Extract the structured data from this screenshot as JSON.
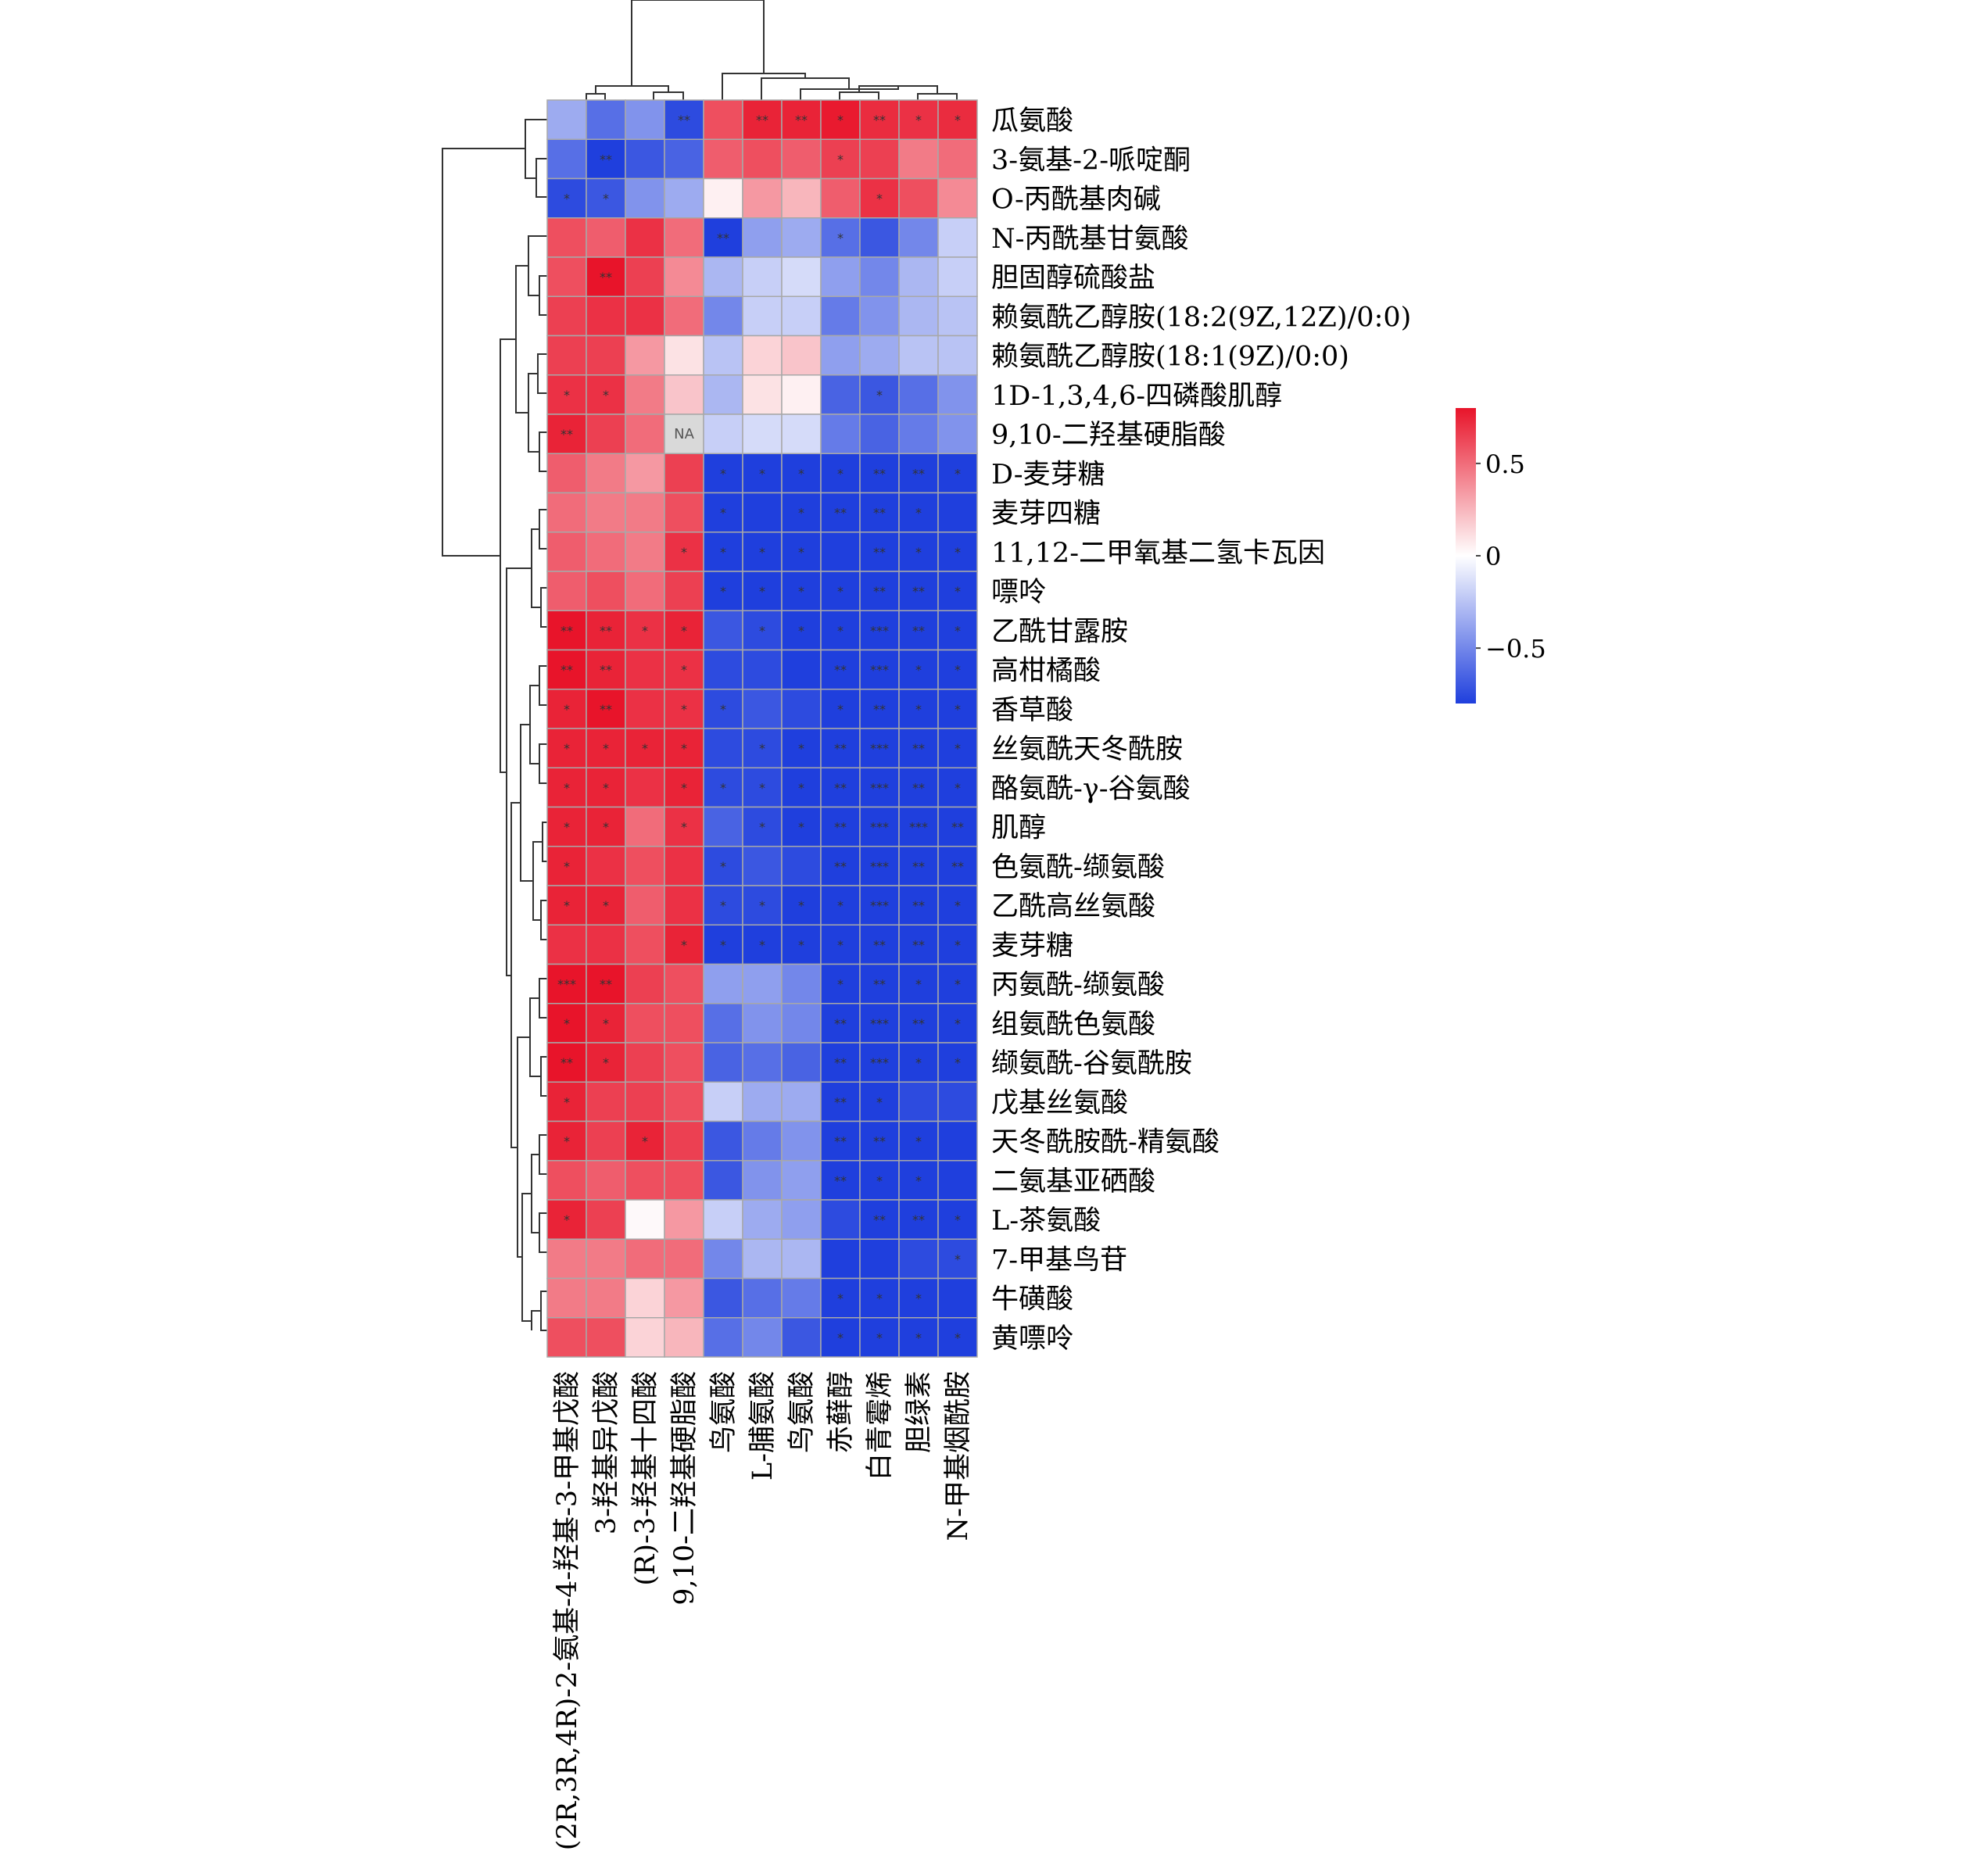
{
  "chart_data": {
    "type": "heatmap",
    "title": "",
    "rows": [
      "瓜氨酸",
      "3-氨基-2-哌啶酮",
      "O-丙酰基肉碱",
      "N-丙酰基甘氨酸",
      "胆固醇硫酸盐",
      "赖氨酰乙醇胺(18:2(9Z,12Z)/0:0)",
      "赖氨酰乙醇胺(18:1(9Z)/0:0)",
      "1D-1,3,4,6-四磷酸肌醇",
      "9,10-二羟基硬脂酸",
      "D-麦芽糖",
      "麦芽四糖",
      "11,12-二甲氧基二氢卡瓦因",
      "嘌呤",
      "乙酰甘露胺",
      "高柑橘酸",
      "香草酸",
      "丝氨酰天冬酰胺",
      "酪氨酰-γ-谷氨酸",
      "肌醇",
      "色氨酰-缬氨酸",
      "乙酰高丝氨酸",
      "麦芽糖",
      "丙氨酰-缬氨酸",
      "组氨酰色氨酸",
      "缬氨酰-谷氨酰胺",
      "戊基丝氨酸",
      "天冬酰胺酰-精氨酸",
      "二氨基亚硒酸",
      "L-茶氨酸",
      "7-甲基鸟苷",
      "牛磺酸",
      "黄嘌呤"
    ],
    "columns": [
      "(2R,3R,4R)-2-氨基-4-羟基-3-甲基戊酸",
      "3-羟基异戊酸",
      "(R)-3-羟基十四酸",
      "9,10-二羟基硬脂酸",
      "鸟氨酸",
      "L-脯氨酸",
      "鸟氨酸",
      "赤藓醇",
      "白青霉烯",
      "胆绿素",
      "N-甲基烟酰胺"
    ],
    "values": [
      [
        -0.35,
        -0.6,
        -0.45,
        -0.75,
        0.6,
        0.75,
        0.75,
        0.78,
        0.72,
        0.7,
        0.72
      ],
      [
        -0.6,
        -0.8,
        -0.7,
        -0.65,
        0.55,
        0.6,
        0.55,
        0.65,
        0.65,
        0.45,
        0.5
      ],
      [
        -0.75,
        -0.7,
        -0.45,
        -0.35,
        0.05,
        0.35,
        0.25,
        0.55,
        0.7,
        0.6,
        0.4
      ],
      [
        0.6,
        0.55,
        0.7,
        0.5,
        -0.8,
        -0.4,
        -0.35,
        -0.6,
        -0.7,
        -0.5,
        -0.2
      ],
      [
        0.6,
        0.85,
        0.65,
        0.4,
        -0.3,
        -0.2,
        -0.15,
        -0.4,
        -0.5,
        -0.3,
        -0.2
      ],
      [
        0.65,
        0.7,
        0.7,
        0.5,
        -0.5,
        -0.2,
        -0.2,
        -0.55,
        -0.45,
        -0.3,
        -0.25
      ],
      [
        0.65,
        0.65,
        0.35,
        0.1,
        -0.25,
        0.15,
        0.2,
        -0.4,
        -0.35,
        -0.25,
        -0.25
      ],
      [
        0.7,
        0.7,
        0.45,
        0.2,
        -0.3,
        0.1,
        0.05,
        -0.65,
        -0.7,
        -0.6,
        -0.45
      ],
      [
        0.75,
        0.65,
        0.5,
        null,
        -0.2,
        -0.15,
        -0.15,
        -0.55,
        -0.65,
        -0.55,
        -0.45
      ],
      [
        0.55,
        0.45,
        0.35,
        0.65,
        -0.8,
        -0.8,
        -0.8,
        -0.85,
        -0.85,
        -0.85,
        -0.85
      ],
      [
        0.5,
        0.45,
        0.45,
        0.6,
        -0.8,
        -0.8,
        -0.8,
        -0.85,
        -0.85,
        -0.85,
        -0.85
      ],
      [
        0.55,
        0.5,
        0.45,
        0.7,
        -0.8,
        -0.8,
        -0.8,
        -0.85,
        -0.85,
        -0.85,
        -0.85
      ],
      [
        0.55,
        0.6,
        0.5,
        0.65,
        -0.8,
        -0.8,
        -0.8,
        -0.85,
        -0.85,
        -0.85,
        -0.85
      ],
      [
        0.8,
        0.75,
        0.7,
        0.75,
        -0.7,
        -0.75,
        -0.8,
        -0.85,
        -0.85,
        -0.85,
        -0.85
      ],
      [
        0.8,
        0.75,
        0.7,
        0.7,
        -0.75,
        -0.75,
        -0.8,
        -0.85,
        -0.85,
        -0.85,
        -0.85
      ],
      [
        0.75,
        0.85,
        0.7,
        0.7,
        -0.75,
        -0.7,
        -0.75,
        -0.85,
        -0.85,
        -0.85,
        -0.85
      ],
      [
        0.75,
        0.75,
        0.75,
        0.75,
        -0.75,
        -0.75,
        -0.8,
        -0.85,
        -0.85,
        -0.85,
        -0.85
      ],
      [
        0.75,
        0.75,
        0.7,
        0.75,
        -0.75,
        -0.75,
        -0.8,
        -0.85,
        -0.85,
        -0.85,
        -0.85
      ],
      [
        0.75,
        0.75,
        0.5,
        0.7,
        -0.65,
        -0.75,
        -0.8,
        -0.85,
        -0.85,
        -0.85,
        -0.85
      ],
      [
        0.75,
        0.7,
        0.6,
        0.7,
        -0.75,
        -0.7,
        -0.75,
        -0.85,
        -0.85,
        -0.85,
        -0.85
      ],
      [
        0.75,
        0.75,
        0.55,
        0.7,
        -0.75,
        -0.75,
        -0.8,
        -0.85,
        -0.85,
        -0.85,
        -0.85
      ],
      [
        0.7,
        0.7,
        0.6,
        0.75,
        -0.8,
        -0.8,
        -0.8,
        -0.85,
        -0.85,
        -0.85,
        -0.85
      ],
      [
        0.9,
        0.8,
        0.65,
        0.6,
        -0.4,
        -0.4,
        -0.5,
        -0.85,
        -0.85,
        -0.85,
        -0.85
      ],
      [
        0.8,
        0.75,
        0.6,
        0.6,
        -0.6,
        -0.45,
        -0.5,
        -0.85,
        -0.85,
        -0.85,
        -0.85
      ],
      [
        0.8,
        0.75,
        0.65,
        0.6,
        -0.65,
        -0.6,
        -0.65,
        -0.85,
        -0.85,
        -0.85,
        -0.85
      ],
      [
        0.75,
        0.65,
        0.65,
        0.6,
        -0.2,
        -0.35,
        -0.35,
        -0.8,
        -0.85,
        -0.75,
        -0.75
      ],
      [
        0.75,
        0.65,
        0.75,
        0.65,
        -0.7,
        -0.55,
        -0.45,
        -0.85,
        -0.85,
        -0.8,
        -0.8
      ],
      [
        0.6,
        0.55,
        0.6,
        0.6,
        -0.7,
        -0.45,
        -0.4,
        -0.85,
        -0.85,
        -0.8,
        -0.8
      ],
      [
        0.75,
        0.65,
        0.02,
        0.35,
        -0.2,
        -0.35,
        -0.4,
        -0.75,
        -0.85,
        -0.8,
        -0.8
      ],
      [
        0.45,
        0.45,
        0.5,
        0.5,
        -0.5,
        -0.3,
        -0.3,
        -0.8,
        -0.8,
        -0.75,
        -0.75
      ],
      [
        0.45,
        0.45,
        0.15,
        0.35,
        -0.7,
        -0.6,
        -0.55,
        -0.85,
        -0.85,
        -0.8,
        -0.85
      ],
      [
        0.6,
        0.6,
        0.15,
        0.25,
        -0.6,
        -0.5,
        -0.7,
        -0.85,
        -0.85,
        -0.85,
        -0.85
      ]
    ],
    "significance": [
      [
        "",
        "",
        "",
        "**",
        "",
        "**",
        "**",
        "*",
        "**",
        "*",
        "*"
      ],
      [
        "",
        "**",
        "",
        "",
        "",
        "",
        "",
        "*",
        "",
        "",
        ""
      ],
      [
        "*",
        "*",
        "",
        "",
        "",
        "",
        "",
        "",
        "*",
        "",
        ""
      ],
      [
        "",
        "",
        "",
        "",
        "**",
        "",
        "",
        "*",
        "",
        "",
        ""
      ],
      [
        "",
        "**",
        "",
        "",
        "",
        "",
        "",
        "",
        "",
        "",
        ""
      ],
      [
        "",
        "",
        "",
        "",
        "",
        "",
        "",
        "",
        "",
        "",
        ""
      ],
      [
        "",
        "",
        "",
        "",
        "",
        "",
        "",
        "",
        "",
        "",
        ""
      ],
      [
        "*",
        "*",
        "",
        "",
        "",
        "",
        "",
        "",
        "*",
        "",
        ""
      ],
      [
        "**",
        "",
        "",
        "",
        "",
        "",
        "",
        "",
        "",
        "",
        ""
      ],
      [
        "",
        "",
        "",
        "",
        "*",
        "*",
        "*",
        "*",
        "**",
        "**",
        "*"
      ],
      [
        "",
        "",
        "",
        "",
        "*",
        "",
        "*",
        "**",
        "**",
        "*",
        ""
      ],
      [
        "",
        "",
        "",
        "*",
        "*",
        "*",
        "*",
        "",
        "**",
        "*",
        "*"
      ],
      [
        "",
        "",
        "",
        "",
        "*",
        "*",
        "*",
        "*",
        "**",
        "**",
        "*"
      ],
      [
        "**",
        "**",
        "*",
        "*",
        "",
        "*",
        "*",
        "*",
        "***",
        "**",
        "*"
      ],
      [
        "**",
        "**",
        "",
        "*",
        "",
        "",
        "",
        "**",
        "***",
        "*",
        "*"
      ],
      [
        "*",
        "**",
        "",
        "*",
        "*",
        "",
        "",
        "*",
        "**",
        "*",
        "*"
      ],
      [
        "*",
        "*",
        "*",
        "*",
        "",
        "*",
        "*",
        "**",
        "***",
        "**",
        "*"
      ],
      [
        "*",
        "*",
        "",
        "*",
        "*",
        "*",
        "*",
        "**",
        "***",
        "**",
        "*"
      ],
      [
        "*",
        "*",
        "",
        "*",
        "",
        "*",
        "*",
        "**",
        "***",
        "***",
        "**"
      ],
      [
        "*",
        "",
        "",
        "",
        "*",
        "",
        "",
        "**",
        "***",
        "**",
        "**"
      ],
      [
        "*",
        "*",
        "",
        "",
        "*",
        "*",
        "*",
        "*",
        "***",
        "**",
        "*"
      ],
      [
        "",
        "",
        "",
        "*",
        "*",
        "*",
        "*",
        "*",
        "**",
        "**",
        "*"
      ],
      [
        "***",
        "**",
        "",
        "",
        "",
        "",
        "",
        "*",
        "**",
        "*",
        "*"
      ],
      [
        "*",
        "*",
        "",
        "",
        "",
        "",
        "",
        "**",
        "***",
        "**",
        "*"
      ],
      [
        "**",
        "*",
        "",
        "",
        "",
        "",
        "",
        "**",
        "***",
        "*",
        "*"
      ],
      [
        "*",
        "",
        "",
        "",
        "",
        "",
        "",
        "**",
        "*",
        "",
        ""
      ],
      [
        "*",
        "",
        "*",
        "",
        "",
        "",
        "",
        "**",
        "**",
        "*",
        ""
      ],
      [
        "",
        "",
        "",
        "",
        "",
        "",
        "",
        "**",
        "*",
        "*",
        ""
      ],
      [
        "*",
        "",
        "",
        "",
        "",
        "",
        "",
        "",
        "**",
        "**",
        "*"
      ],
      [
        "",
        "",
        "",
        "",
        "",
        "",
        "",
        "",
        "",
        "",
        "*"
      ],
      [
        "",
        "",
        "",
        "",
        "",
        "",
        "",
        "*",
        "*",
        "*",
        ""
      ],
      [
        "",
        "",
        "",
        "",
        "",
        "",
        "",
        "*",
        "*",
        "*",
        "*"
      ]
    ],
    "na_label": "NA",
    "color_scale": {
      "min": -0.8,
      "max": 0.8,
      "low": "#1f3fdd",
      "mid": "#ffffff",
      "high": "#e8142a"
    },
    "colorbar_ticks": [
      {
        "value": 0.5,
        "label": "0.5"
      },
      {
        "value": 0,
        "label": "0"
      },
      {
        "value": -0.5,
        "label": "−0.5"
      }
    ],
    "row_dendrogram": true,
    "column_dendrogram": true
  }
}
